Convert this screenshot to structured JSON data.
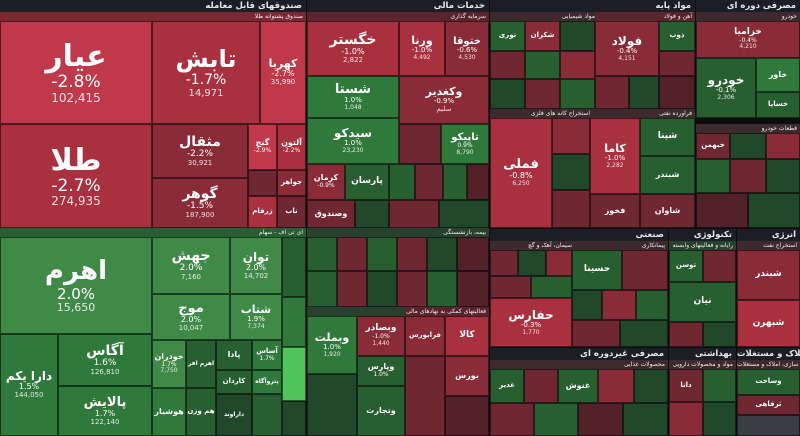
{
  "sectors": {
    "funds": {
      "title": "صندوقهای قابل معامله",
      "sub_red": "صندوق پشتوانه طلا",
      "sub_green": "ای تی اف - سهام"
    },
    "services": {
      "title": "خدمات مالی",
      "sub_insurance": "بیمه، بازنشستگی",
      "sub_banks": "بانکها و موسسات اعتباری",
      "sub_leasing": "فعالیتهای کمکی به نهادهای مالی",
      "sub_invest": "سرمایه گذاری"
    },
    "basic": {
      "title": "مواد پایه",
      "sub_chem": "مواد شیمیایی",
      "sub_steel": "آهن و فولاد",
      "sub_refine": "فراورده نفتی",
      "sub_metal": "فلزات اساسی",
      "sub_mining": "استخراج کانه های فلزی"
    },
    "consumer": {
      "title": "مصرفی دوره ای",
      "sub_auto": "خودرو",
      "sub_parts": "قطعات خودرو"
    },
    "industrial": {
      "title": "صنعتی",
      "sub_cement": "سیمان، آهک و گچ",
      "sub_eng": "پیمانکاری"
    },
    "tech": {
      "title": "تکنولوژی",
      "sub_soft": "رایانه و فعالیتهای وابسته"
    },
    "energy": {
      "title": "انرژی",
      "sub_oil": "استخراج نفت"
    },
    "noncyc": {
      "title": "مصرفی غیردوره ای",
      "sub_food": "محصولات غذایی"
    },
    "health": {
      "title": "بهداشتی",
      "sub_pharma": "مواد و محصولات دارویی"
    },
    "realestate": {
      "title": "املاک و مستغلات",
      "sub_build": "انبوه سازی، املاک و مستغلات"
    }
  },
  "tiles": {
    "ayar": {
      "name": "عیار",
      "pct": "-2.8%",
      "vol": "102,415"
    },
    "tabesh": {
      "name": "تابش",
      "pct": "-1.7%",
      "vol": "14,971"
    },
    "kahroba": {
      "name": "کهربا",
      "pct": "-2.7%",
      "vol": "35,990"
    },
    "tala": {
      "name": "طلا",
      "pct": "-2.7%",
      "vol": "274,935"
    },
    "mesghal": {
      "name": "مثقال",
      "pct": "-2.2%",
      "vol": "30,921"
    },
    "ganj": {
      "name": "گنج",
      "pct": "-2.9%",
      "vol": ""
    },
    "alton": {
      "name": "آلتون",
      "pct": "-2.2%",
      "vol": ""
    },
    "gohar": {
      "name": "گوهر",
      "pct": "-1.5%",
      "vol": "187,900"
    },
    "javaher": {
      "name": "جواهر",
      "pct": "",
      "vol": ""
    },
    "zarfam": {
      "name": "زرفام",
      "pct": "",
      "vol": ""
    },
    "nab": {
      "name": "ناب",
      "pct": "",
      "vol": ""
    },
    "ahrom": {
      "name": "اهرم",
      "pct": "2.0%",
      "vol": "15,650"
    },
    "jahesh": {
      "name": "جهش",
      "pct": "2.0%",
      "vol": "7,160"
    },
    "tavan": {
      "name": "توان",
      "pct": "2.0%",
      "vol": "14,702"
    },
    "mouj": {
      "name": "موج",
      "pct": "2.0%",
      "vol": "10,047"
    },
    "shetab": {
      "name": "شتاب",
      "pct": "1.9%",
      "vol": "7,374"
    },
    "agas": {
      "name": "آگاس",
      "pct": "1.6%",
      "vol": "126,810"
    },
    "darayekom": {
      "name": "دارا یکم",
      "pct": "1.5%",
      "vol": "144,050"
    },
    "palayesh": {
      "name": "پالایش",
      "pct": "1.7%",
      "vol": "122,140"
    },
    "khodran": {
      "name": "خودران",
      "pct": "1.7%",
      "vol": "7,750"
    },
    "hooshyar": {
      "name": "هوشیار",
      "pct": "",
      "vol": ""
    },
    "hamvazn": {
      "name": "هم وزن",
      "pct": "",
      "vol": ""
    },
    "asas": {
      "name": "آساس",
      "pct": "1.7%",
      "vol": ""
    },
    "pada": {
      "name": "پادا",
      "pct": "",
      "vol": ""
    },
    "kardan": {
      "name": "کاردان",
      "pct": "",
      "vol": ""
    },
    "petroagah": {
      "name": "پتروآگاه",
      "pct": "",
      "vol": ""
    },
    "ehra": {
      "name": "اهرم افر",
      "pct": "",
      "vol": ""
    },
    "daravad": {
      "name": "داراوند",
      "pct": "",
      "vol": ""
    },
    "kheghestar": {
      "name": "خگستر",
      "pct": "-1.0%",
      "vol": "2,822"
    },
    "varna": {
      "name": "ورنا",
      "pct": "-1.0%",
      "vol": "4,492"
    },
    "khetogha": {
      "name": "ختوقا",
      "pct": "-0.6%",
      "vol": "4,530"
    },
    "shasta": {
      "name": "شستا",
      "pct": "1.0%",
      "vol": "1,048"
    },
    "vakhdir": {
      "name": "وکغدیر",
      "pct": "-0.9%",
      "vol": "",
      "sub": "سلیم"
    },
    "sidko": {
      "name": "سیدکو",
      "pct": "1.0%",
      "vol": "23,230"
    },
    "tapiko": {
      "name": "تاپیکو",
      "pct": "0.9%",
      "vol": "8,790"
    },
    "parsan": {
      "name": "پارسان",
      "pct": "",
      "vol": ""
    },
    "kerman": {
      "name": "کرمان",
      "pct": "-0.9%",
      "vol": ""
    },
    "vsandogh": {
      "name": "وصندوق",
      "pct": "",
      "vol": ""
    },
    "vbmellat": {
      "name": "وبملت",
      "pct": "1.0%",
      "vol": "1,920"
    },
    "vbsader": {
      "name": "وبصادر",
      "pct": "-1.0%",
      "vol": "1,440"
    },
    "vpars": {
      "name": "وپارس",
      "pct": "1.0%",
      "vol": ""
    },
    "vtejarat": {
      "name": "وتجارت",
      "pct": "",
      "vol": ""
    },
    "kala": {
      "name": "کالا",
      "pct": "",
      "vol": ""
    },
    "farabours": {
      "name": "فرابورس",
      "pct": "",
      "vol": ""
    },
    "boors": {
      "name": "بورس",
      "pct": "",
      "vol": ""
    },
    "nouri": {
      "name": "نوری",
      "pct": "",
      "vol": ""
    },
    "shekaran": {
      "name": "شکران",
      "pct": "",
      "vol": ""
    },
    "fouladd": {
      "name": "فولاد",
      "pct": "-0.4%",
      "vol": "4,151"
    },
    "zob": {
      "name": "ذوب",
      "pct": "",
      "vol": ""
    },
    "fmelli": {
      "name": "فملی",
      "pct": "-0.8%",
      "vol": "6,250"
    },
    "kama": {
      "name": "کاما",
      "pct": "-1.0%",
      "vol": "2,282"
    },
    "shapna": {
      "name": "شپنا",
      "pct": "",
      "vol": ""
    },
    "shabandar": {
      "name": "شبندر",
      "pct": "",
      "vol": ""
    },
    "shavan": {
      "name": "شاوان",
      "pct": "",
      "vol": ""
    },
    "fkhouz": {
      "name": "فخوز",
      "pct": "",
      "vol": ""
    },
    "khazamia": {
      "name": "خزامیا",
      "pct": "-0.4%",
      "vol": "4,210"
    },
    "khodro": {
      "name": "خودرو",
      "pct": "-0.1%",
      "vol": "2,306"
    },
    "khav": {
      "name": "خاور",
      "pct": "",
      "vol": ""
    },
    "khsapa": {
      "name": "خساپا",
      "pct": "",
      "vol": ""
    },
    "khabar": {
      "name": "خبهمن",
      "pct": "",
      "vol": ""
    },
    "hafarsa": {
      "name": "حفارس",
      "pct": "-0.3%",
      "vol": "1,770"
    },
    "hasina": {
      "name": "حسینا",
      "pct": "",
      "vol": ""
    },
    "ghadir": {
      "name": "غدیر",
      "pct": "",
      "vol": ""
    },
    "sepahan": {
      "name": "سپاهان",
      "pct": "",
      "vol": ""
    },
    "shena": {
      "name": "شنا",
      "pct": "",
      "vol": ""
    },
    "tavan_s": {
      "name": "توسن",
      "pct": "",
      "vol": ""
    },
    "niyan": {
      "name": "نیان",
      "pct": "",
      "vol": ""
    },
    "shebandr": {
      "name": "شبندر",
      "pct": "",
      "vol": ""
    },
    "shbhrn": {
      "name": "شبهرن",
      "pct": "",
      "vol": ""
    },
    "shazand": {
      "name": "شزاگرس",
      "pct": "",
      "vol": ""
    },
    "ghnoush": {
      "name": "غنوش",
      "pct": "",
      "vol": ""
    },
    "dana": {
      "name": "دانا",
      "pct": "",
      "vol": ""
    },
    "vsakht": {
      "name": "وساخت",
      "pct": "",
      "vol": ""
    },
    "saghe": {
      "name": "ساخت",
      "pct": "",
      "vol": ""
    },
    "sasht": {
      "name": "ثاخت",
      "pct": "",
      "vol": ""
    },
    "vtouka": {
      "name": "وتوکا",
      "pct": "",
      "vol": ""
    },
    "rafahi": {
      "name": "ثرفاهی",
      "pct": "",
      "vol": ""
    },
    "dagar": {
      "name": "دلقما",
      "pct": "",
      "vol": ""
    }
  }
}
